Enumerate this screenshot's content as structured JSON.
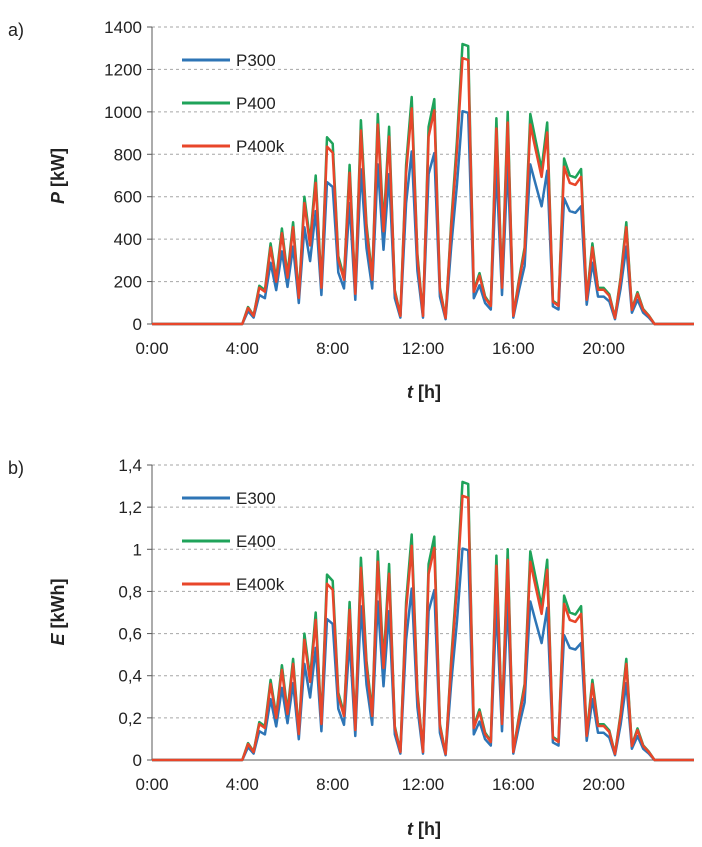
{
  "figure": {
    "panels": [
      {
        "label": "a)"
      },
      {
        "label": "b)"
      }
    ]
  },
  "chart_data": [
    {
      "type": "line",
      "panel_label": "a)",
      "xlabel_italic": "t",
      "xlabel_unit": " [h]",
      "ylabel_italic": "P",
      "ylabel_unit": " [kW]",
      "xlim": [
        0,
        24
      ],
      "ylim": [
        0,
        1400
      ],
      "x_ticks": [
        0,
        4,
        8,
        12,
        16,
        20
      ],
      "x_tick_labels": [
        "0:00",
        "4:00",
        "8:00",
        "12:00",
        "16:00",
        "20:00"
      ],
      "y_ticks": [
        0,
        200,
        400,
        600,
        800,
        1000,
        1200,
        1400
      ],
      "y_tick_labels": [
        "0",
        "200",
        "400",
        "600",
        "800",
        "1000",
        "1200",
        "1400"
      ],
      "grid": "horizontal-dashed",
      "legend": "top-left",
      "series": [
        {
          "name": "P300",
          "color": "#2e75b6",
          "scale": 0.76
        },
        {
          "name": "P400",
          "color": "#1fa35a",
          "scale": 1.0
        },
        {
          "name": "P400k",
          "color": "#e8462a",
          "scale": 0.95
        }
      ],
      "x": [
        0.0,
        0.25,
        0.5,
        0.75,
        1.0,
        1.25,
        1.5,
        1.75,
        2.0,
        2.25,
        2.5,
        2.75,
        3.0,
        3.25,
        3.5,
        3.75,
        4.0,
        4.25,
        4.5,
        4.75,
        5.0,
        5.25,
        5.5,
        5.75,
        6.0,
        6.25,
        6.5,
        6.75,
        7.0,
        7.25,
        7.5,
        7.75,
        8.0,
        8.25,
        8.5,
        8.75,
        9.0,
        9.25,
        9.5,
        9.75,
        10.0,
        10.25,
        10.5,
        10.75,
        11.0,
        11.25,
        11.5,
        11.75,
        12.0,
        12.25,
        12.5,
        12.75,
        13.0,
        13.25,
        13.5,
        13.75,
        14.0,
        14.25,
        14.5,
        14.75,
        15.0,
        15.25,
        15.5,
        15.75,
        16.0,
        16.25,
        16.5,
        16.75,
        17.0,
        17.25,
        17.5,
        17.75,
        18.0,
        18.25,
        18.5,
        18.75,
        19.0,
        19.25,
        19.5,
        19.75,
        20.0,
        20.25,
        20.5,
        20.75,
        21.0,
        21.25,
        21.5,
        21.75,
        22.0,
        22.25,
        22.5,
        22.75,
        23.0,
        23.25,
        23.5,
        23.75,
        24.0
      ],
      "y": [
        0,
        0,
        0,
        0,
        0,
        0,
        0,
        0,
        0,
        0,
        0,
        0,
        0,
        0,
        0,
        0,
        0,
        80,
        40,
        180,
        160,
        380,
        210,
        450,
        230,
        480,
        130,
        600,
        390,
        700,
        180,
        880,
        850,
        320,
        220,
        750,
        150,
        960,
        470,
        220,
        990,
        460,
        930,
        160,
        40,
        750,
        1070,
        330,
        40,
        930,
        1060,
        170,
        30,
        480,
        860,
        1320,
        1310,
        160,
        240,
        130,
        90,
        970,
        180,
        1000,
        40,
        210,
        360,
        990,
        860,
        730,
        950,
        110,
        90,
        780,
        700,
        690,
        730,
        120,
        380,
        170,
        170,
        140,
        30,
        220,
        480,
        70,
        150,
        70,
        40,
        0,
        0,
        0,
        0,
        0,
        0,
        0,
        0
      ]
    },
    {
      "type": "line",
      "panel_label": "b)",
      "xlabel_italic": "t",
      "xlabel_unit": " [h]",
      "ylabel_italic": "E",
      "ylabel_unit": " [kWh]",
      "xlim": [
        0,
        24
      ],
      "ylim": [
        0,
        1.4
      ],
      "x_ticks": [
        0,
        4,
        8,
        12,
        16,
        20
      ],
      "x_tick_labels": [
        "0:00",
        "4:00",
        "8:00",
        "12:00",
        "16:00",
        "20:00"
      ],
      "y_ticks": [
        0,
        0.2,
        0.4,
        0.6,
        0.8,
        1.0,
        1.2,
        1.4
      ],
      "y_tick_labels": [
        "0",
        "0,2",
        "0,4",
        "0,6",
        "0,8",
        "1",
        "1,2",
        "1,4"
      ],
      "grid": "horizontal-dashed",
      "legend": "top-left",
      "series": [
        {
          "name": "E300",
          "color": "#2e75b6",
          "scale": 0.76
        },
        {
          "name": "E400",
          "color": "#1fa35a",
          "scale": 1.0
        },
        {
          "name": "E400k",
          "color": "#e8462a",
          "scale": 0.95
        }
      ],
      "x": [
        0.0,
        0.25,
        0.5,
        0.75,
        1.0,
        1.25,
        1.5,
        1.75,
        2.0,
        2.25,
        2.5,
        2.75,
        3.0,
        3.25,
        3.5,
        3.75,
        4.0,
        4.25,
        4.5,
        4.75,
        5.0,
        5.25,
        5.5,
        5.75,
        6.0,
        6.25,
        6.5,
        6.75,
        7.0,
        7.25,
        7.5,
        7.75,
        8.0,
        8.25,
        8.5,
        8.75,
        9.0,
        9.25,
        9.5,
        9.75,
        10.0,
        10.25,
        10.5,
        10.75,
        11.0,
        11.25,
        11.5,
        11.75,
        12.0,
        12.25,
        12.5,
        12.75,
        13.0,
        13.25,
        13.5,
        13.75,
        14.0,
        14.25,
        14.5,
        14.75,
        15.0,
        15.25,
        15.5,
        15.75,
        16.0,
        16.25,
        16.5,
        16.75,
        17.0,
        17.25,
        17.5,
        17.75,
        18.0,
        18.25,
        18.5,
        18.75,
        19.0,
        19.25,
        19.5,
        19.75,
        20.0,
        20.25,
        20.5,
        20.75,
        21.0,
        21.25,
        21.5,
        21.75,
        22.0,
        22.25,
        22.5,
        22.75,
        23.0,
        23.25,
        23.5,
        23.75,
        24.0
      ],
      "y": [
        0,
        0,
        0,
        0,
        0,
        0,
        0,
        0,
        0,
        0,
        0,
        0,
        0,
        0,
        0,
        0,
        0,
        0.08,
        0.04,
        0.18,
        0.16,
        0.38,
        0.21,
        0.45,
        0.23,
        0.48,
        0.13,
        0.6,
        0.39,
        0.7,
        0.18,
        0.88,
        0.85,
        0.32,
        0.22,
        0.75,
        0.15,
        0.96,
        0.47,
        0.22,
        0.99,
        0.46,
        0.93,
        0.16,
        0.04,
        0.75,
        1.07,
        0.33,
        0.04,
        0.93,
        1.06,
        0.17,
        0.03,
        0.48,
        0.86,
        1.32,
        1.31,
        0.16,
        0.24,
        0.13,
        0.09,
        0.97,
        0.18,
        1.0,
        0.04,
        0.21,
        0.36,
        0.99,
        0.86,
        0.73,
        0.95,
        0.11,
        0.09,
        0.78,
        0.7,
        0.69,
        0.73,
        0.12,
        0.38,
        0.17,
        0.17,
        0.14,
        0.03,
        0.22,
        0.48,
        0.07,
        0.15,
        0.07,
        0.04,
        0,
        0,
        0,
        0,
        0,
        0,
        0,
        0
      ]
    }
  ]
}
